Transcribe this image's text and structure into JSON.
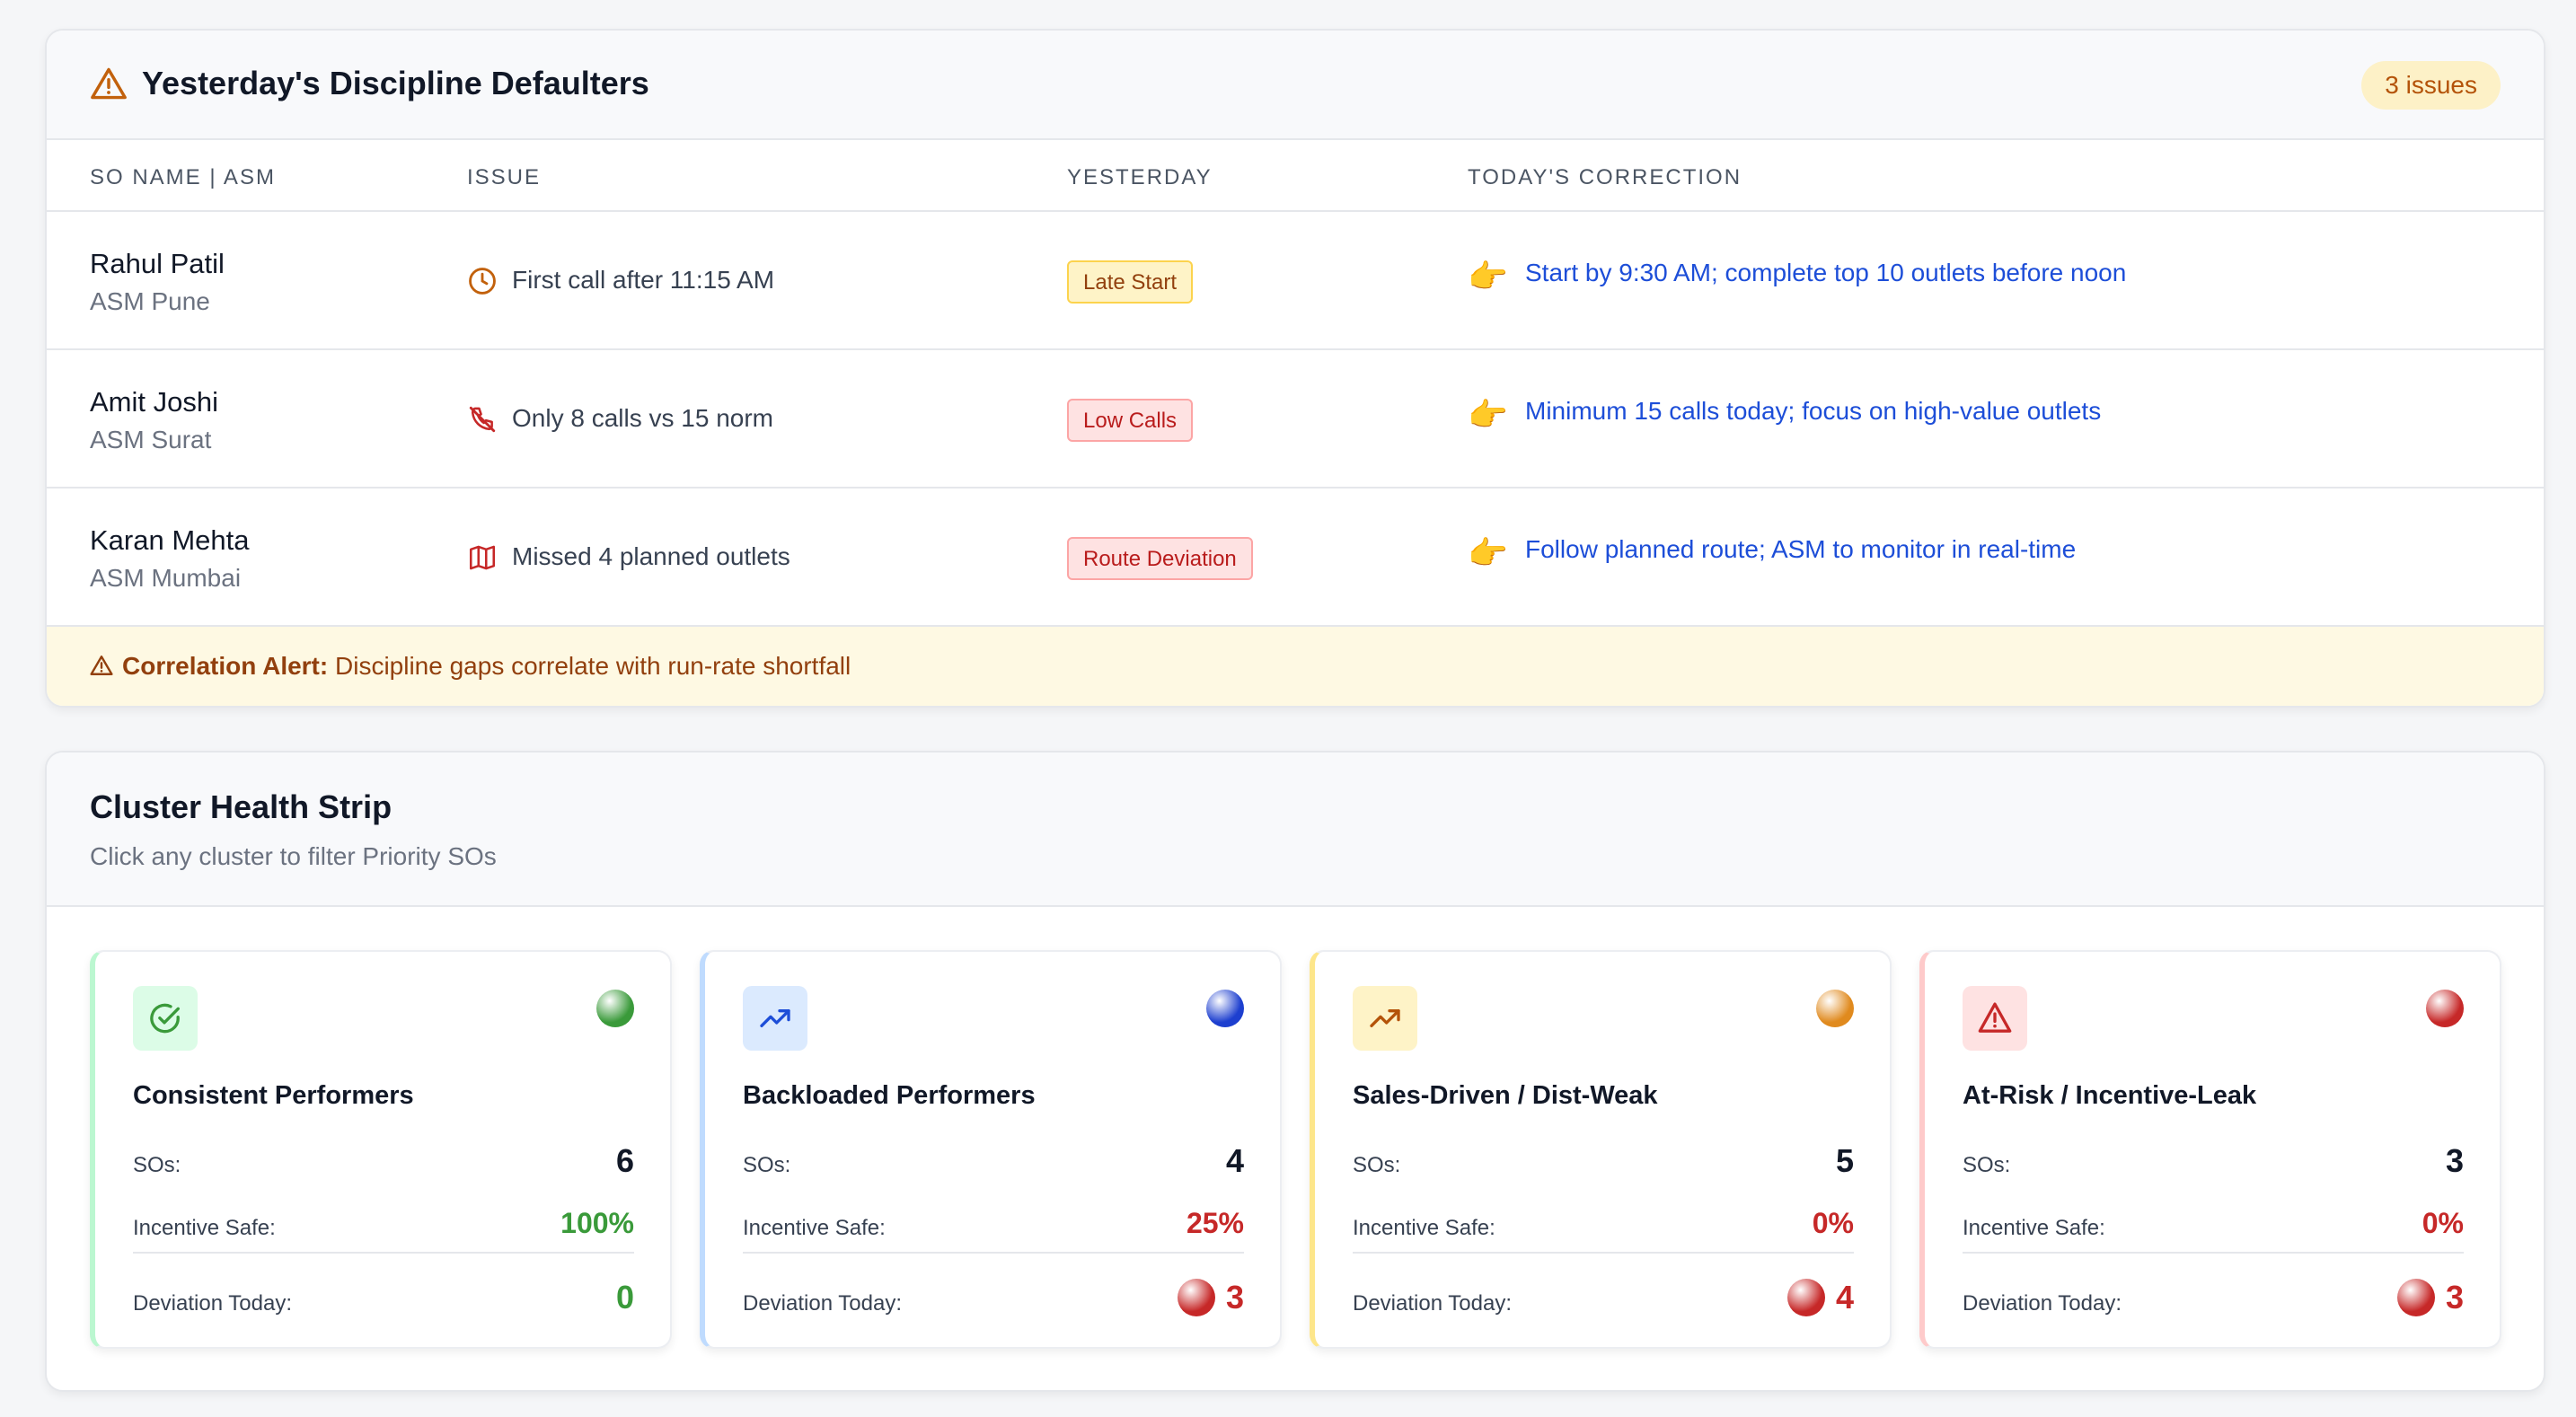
{
  "defaulters": {
    "title": "Yesterday's Discipline Defaulters",
    "badge": "3 issues",
    "columns": [
      "SO Name | ASM",
      "Issue",
      "Yesterday",
      "Today's Correction"
    ],
    "rows": [
      {
        "name": "Rahul Patil",
        "asm": "ASM Pune",
        "issue": "First call after 11:15 AM",
        "issue_icon": "clock-icon",
        "tag": "Late Start",
        "tag_color": "#fef3c7",
        "correction": "Start by 9:30 AM; complete top 10 outlets before noon"
      },
      {
        "name": "Amit Joshi",
        "asm": "ASM Surat",
        "issue": "Only 8 calls vs 15 norm",
        "issue_icon": "phone-off-icon",
        "tag": "Low Calls",
        "tag_color": "#fee2e2",
        "correction": "Minimum 15 calls today; focus on high-value outlets"
      },
      {
        "name": "Karan Mehta",
        "asm": "ASM Mumbai",
        "issue": "Missed 4 planned outlets",
        "issue_icon": "map-icon",
        "tag": "Route Deviation",
        "tag_color": "#fee2e2",
        "correction": "Follow planned route; ASM to monitor in real-time"
      }
    ],
    "correction_icon": "👉",
    "alert": {
      "label": "Correlation Alert:",
      "text": "Discipline gaps correlate with run-rate shortfall"
    }
  },
  "cluster": {
    "title": "Cluster Health Strip",
    "subtitle": "Click any cluster to filter Priority SOs",
    "labels": {
      "sos": "SOs:",
      "incentive": "Incentive Safe:",
      "deviation": "Deviation Today:"
    },
    "tiles": [
      {
        "name": "Consistent Performers",
        "icon": "check-circle-icon",
        "accent": "#bbf7d0",
        "icon_bg": "#dcfce7",
        "status_dot": "#3a9a3a",
        "sos": "6",
        "incentive": "100%",
        "deviation": "0"
      },
      {
        "name": "Backloaded Performers",
        "icon": "trending-up-icon",
        "accent": "#bfdbfe",
        "icon_bg": "#dbeafe",
        "status_dot": "#1d3fcf",
        "sos": "4",
        "incentive": "25%",
        "deviation": "3"
      },
      {
        "name": "Sales-Driven / Dist-Weak",
        "icon": "trending-up-icon",
        "accent": "#fde68a",
        "icon_bg": "#fef3c7",
        "status_dot": "#e08a1e",
        "sos": "5",
        "incentive": "0%",
        "deviation": "4"
      },
      {
        "name": "At-Risk / Incentive-Leak",
        "icon": "alert-triangle-icon",
        "accent": "#fecaca",
        "icon_bg": "#fee2e2",
        "status_dot": "#c62828",
        "sos": "3",
        "incentive": "0%",
        "deviation": "3"
      }
    ]
  }
}
